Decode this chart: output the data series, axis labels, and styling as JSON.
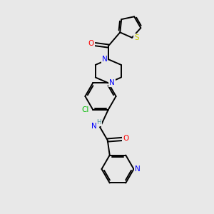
{
  "bg_color": "#e8e8e8",
  "bond_color": "#000000",
  "atom_colors": {
    "N": "#0000ff",
    "O": "#ff0000",
    "S": "#cccc00",
    "Cl": "#00bb00",
    "C": "#000000",
    "H": "#4a9090"
  },
  "figsize": [
    3.0,
    3.0
  ],
  "dpi": 100
}
